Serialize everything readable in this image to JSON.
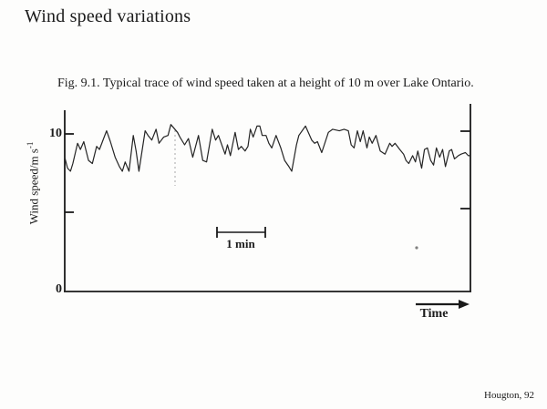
{
  "page": {
    "title": "Wind speed variations",
    "caption": "Fig. 9.1. Typical trace of wind speed taken at a height of 10 m over Lake Ontario.",
    "credit": "Hougton, 92"
  },
  "axes": {
    "y_label_main": "Wind speed/m s",
    "y_label_sup": "-1",
    "y_tick_top": "10",
    "y_tick_bottom": "0",
    "scalebar_label": "1 min",
    "time_label": "Time"
  },
  "colors": {
    "ink": "#1a1a1a",
    "trace": "#242424",
    "artifact": "#a8a8a8"
  },
  "chart_data": {
    "type": "line",
    "title": "Typical trace of wind speed taken at a height of 10 m over Lake Ontario",
    "xlabel": "Time",
    "ylabel": "Wind speed/m s^-1",
    "x_unit": "minutes",
    "x_scale_note": "horizontal scale bar marked 1 min; no numeric time axis shown",
    "xlim": [
      0,
      8.52
    ],
    "ylim": [
      0,
      11.5
    ],
    "yticks": [
      0,
      5,
      10
    ],
    "ytick_labels": [
      "0",
      "",
      "10"
    ],
    "grid": false,
    "legend": false,
    "series": [
      {
        "name": "wind speed trace",
        "points": [
          [
            0.0,
            8.5
          ],
          [
            0.06,
            7.8
          ],
          [
            0.12,
            7.6
          ],
          [
            0.17,
            8.1
          ],
          [
            0.27,
            9.4
          ],
          [
            0.33,
            9.0
          ],
          [
            0.4,
            9.5
          ],
          [
            0.5,
            8.3
          ],
          [
            0.58,
            8.1
          ],
          [
            0.67,
            9.2
          ],
          [
            0.73,
            9.0
          ],
          [
            0.83,
            9.8
          ],
          [
            0.88,
            10.2
          ],
          [
            0.96,
            9.5
          ],
          [
            1.06,
            8.5
          ],
          [
            1.15,
            7.9
          ],
          [
            1.21,
            7.6
          ],
          [
            1.27,
            8.2
          ],
          [
            1.35,
            7.6
          ],
          [
            1.44,
            9.9
          ],
          [
            1.5,
            8.9
          ],
          [
            1.56,
            7.6
          ],
          [
            1.69,
            10.2
          ],
          [
            1.75,
            9.9
          ],
          [
            1.83,
            9.6
          ],
          [
            1.92,
            10.3
          ],
          [
            1.98,
            9.4
          ],
          [
            2.08,
            9.8
          ],
          [
            2.17,
            9.9
          ],
          [
            2.23,
            10.6
          ],
          [
            2.37,
            10.1
          ],
          [
            2.42,
            9.8
          ],
          [
            2.52,
            9.3
          ],
          [
            2.6,
            9.7
          ],
          [
            2.69,
            8.5
          ],
          [
            2.81,
            9.9
          ],
          [
            2.9,
            8.3
          ],
          [
            2.98,
            8.2
          ],
          [
            3.1,
            10.3
          ],
          [
            3.17,
            9.6
          ],
          [
            3.23,
            9.9
          ],
          [
            3.37,
            8.7
          ],
          [
            3.42,
            9.3
          ],
          [
            3.48,
            8.6
          ],
          [
            3.58,
            10.1
          ],
          [
            3.65,
            9.0
          ],
          [
            3.71,
            9.2
          ],
          [
            3.79,
            8.9
          ],
          [
            3.85,
            9.2
          ],
          [
            3.9,
            10.3
          ],
          [
            3.96,
            9.8
          ],
          [
            4.04,
            10.5
          ],
          [
            4.1,
            10.5
          ],
          [
            4.15,
            9.9
          ],
          [
            4.23,
            9.9
          ],
          [
            4.29,
            9.4
          ],
          [
            4.35,
            9.1
          ],
          [
            4.44,
            9.9
          ],
          [
            4.54,
            9.1
          ],
          [
            4.62,
            8.3
          ],
          [
            4.71,
            7.9
          ],
          [
            4.77,
            7.6
          ],
          [
            4.87,
            9.3
          ],
          [
            4.92,
            9.9
          ],
          [
            5.06,
            10.5
          ],
          [
            5.19,
            9.6
          ],
          [
            5.25,
            9.4
          ],
          [
            5.31,
            9.5
          ],
          [
            5.4,
            8.8
          ],
          [
            5.54,
            10.1
          ],
          [
            5.63,
            10.3
          ],
          [
            5.77,
            10.2
          ],
          [
            5.87,
            10.3
          ],
          [
            5.96,
            10.2
          ],
          [
            6.02,
            9.3
          ],
          [
            6.08,
            9.1
          ],
          [
            6.15,
            10.2
          ],
          [
            6.21,
            9.5
          ],
          [
            6.27,
            10.2
          ],
          [
            6.35,
            9.1
          ],
          [
            6.4,
            9.8
          ],
          [
            6.46,
            9.4
          ],
          [
            6.54,
            9.9
          ],
          [
            6.63,
            8.9
          ],
          [
            6.73,
            8.7
          ],
          [
            6.83,
            9.4
          ],
          [
            6.88,
            9.2
          ],
          [
            6.94,
            9.4
          ],
          [
            7.04,
            9.0
          ],
          [
            7.12,
            8.7
          ],
          [
            7.17,
            8.3
          ],
          [
            7.23,
            8.1
          ],
          [
            7.31,
            8.6
          ],
          [
            7.37,
            8.2
          ],
          [
            7.42,
            8.9
          ],
          [
            7.5,
            7.8
          ],
          [
            7.56,
            9.0
          ],
          [
            7.62,
            9.1
          ],
          [
            7.69,
            8.3
          ],
          [
            7.75,
            8.0
          ],
          [
            7.81,
            9.1
          ],
          [
            7.88,
            8.5
          ],
          [
            7.94,
            9.0
          ],
          [
            8.0,
            7.9
          ],
          [
            8.08,
            8.9
          ],
          [
            8.13,
            9.0
          ],
          [
            8.19,
            8.4
          ],
          [
            8.27,
            8.6
          ],
          [
            8.33,
            8.7
          ],
          [
            8.42,
            8.8
          ],
          [
            8.48,
            8.6
          ],
          [
            8.52,
            8.6
          ]
        ]
      }
    ]
  }
}
